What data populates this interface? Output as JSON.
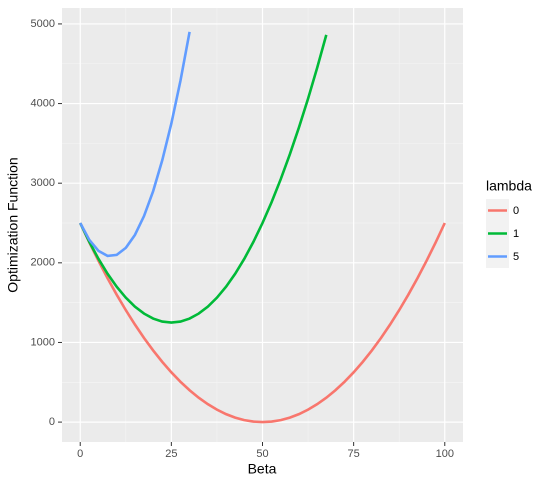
{
  "chart_data": {
    "type": "line",
    "x_label": "Beta",
    "y_label": "Optimization Function",
    "legend_title": "lambda",
    "legend_position": "right",
    "grid": true,
    "xlim": [
      -5,
      105
    ],
    "xticks": [
      0,
      25,
      50,
      75,
      100
    ],
    "ylim": [
      -250,
      5200
    ],
    "yticks": [
      0,
      1000,
      2000,
      3000,
      4000,
      5000
    ],
    "x": [
      0,
      2.5,
      5,
      7.5,
      10,
      12.5,
      15,
      17.5,
      20,
      22.5,
      25,
      27.5,
      30,
      32.5,
      35,
      37.5,
      40,
      42.5,
      45,
      47.5,
      50,
      52.5,
      55,
      57.5,
      60,
      62.5,
      65,
      67.5,
      70,
      72.5,
      75,
      77.5,
      80,
      82.5,
      85,
      87.5,
      90,
      92.5,
      95,
      97.5,
      100
    ],
    "series": [
      {
        "name": "0",
        "color": "#F8766D",
        "values": [
          2500,
          2256.25,
          2025,
          1806.25,
          1600,
          1406.25,
          1225,
          1056.25,
          900,
          756.25,
          625,
          506.25,
          400,
          306.25,
          225,
          156.25,
          100,
          56.25,
          25,
          6.25,
          0,
          6.25,
          25,
          56.25,
          100,
          156.25,
          225,
          306.25,
          400,
          506.25,
          625,
          756.25,
          900,
          1056.25,
          1225,
          1406.25,
          1600,
          1806.25,
          2025,
          2256.25,
          2500
        ]
      },
      {
        "name": "1",
        "color": "#00BA38",
        "values": [
          2500,
          2262.5,
          2050,
          1862.5,
          1700,
          1562.5,
          1450,
          1362.5,
          1300,
          1262.5,
          1250,
          1262.5,
          1300,
          1362.5,
          1450,
          1562.5,
          1700,
          1862.5,
          2050,
          2262.5,
          2500,
          2762.5,
          3050,
          3362.5,
          3700,
          4062.5,
          4450,
          4862.5,
          null,
          null,
          null,
          null,
          null,
          null,
          null,
          null,
          null,
          null,
          null,
          null,
          null
        ]
      },
      {
        "name": "5",
        "color": "#619CFF",
        "values": [
          2500,
          2287.5,
          2150,
          2087.5,
          2100,
          2187.5,
          2350,
          2587.5,
          2900,
          3287.5,
          3750,
          4287.5,
          4900,
          null,
          null,
          null,
          null,
          null,
          null,
          null,
          null,
          null,
          null,
          null,
          null,
          null,
          null,
          null,
          null,
          null,
          null,
          null,
          null,
          null,
          null,
          null,
          null,
          null,
          null,
          null,
          null
        ]
      }
    ]
  }
}
